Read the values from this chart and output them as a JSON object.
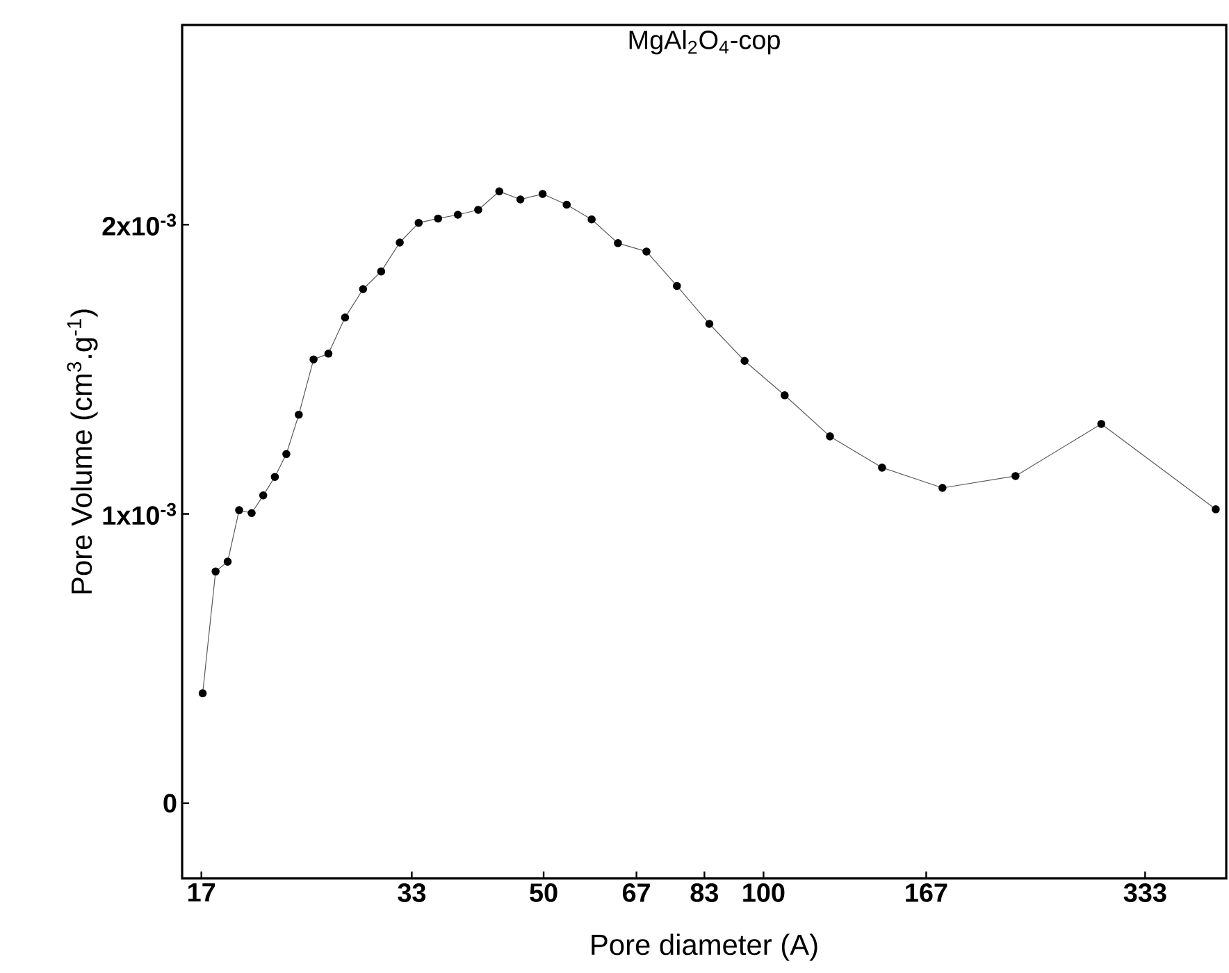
{
  "chart_data": {
    "type": "line",
    "title": "MgAl$_{2}$O$_{4}$-cop",
    "xlabel": "Pore diameter (A)",
    "ylabel": "Pore Volume (cm$^{3}$.g$^{-1}$)",
    "log": "x",
    "xlim": [
      16,
      430
    ],
    "ylim": [
      -0.00026,
      0.00269
    ],
    "xticks": [
      17,
      33,
      50,
      67,
      83,
      100,
      167,
      333
    ],
    "yticks": [
      {
        "value": 0,
        "label": "0"
      },
      {
        "value": 0.001,
        "label": "1x10$^{-3}$"
      },
      {
        "value": 0.002,
        "label": "2x10$^{-3}$"
      }
    ],
    "marker": "circle",
    "line_style": "solid",
    "series": [
      {
        "color": "#000000",
        "x": [
          17.07,
          17.78,
          18.47,
          19.15,
          19.92,
          20.66,
          21.43,
          22.22,
          23.11,
          24.21,
          25.37,
          26.74,
          28.3,
          29.96,
          31.77,
          33.72,
          35.85,
          38.16,
          40.68,
          43.48,
          46.47,
          49.84,
          53.77,
          58.17,
          63.2,
          69.15,
          76.12,
          84.3,
          94.2,
          106.9,
          123.3,
          145.3,
          175.8,
          221.3,
          290,
          416
        ],
        "values": [
          0.00038,
          0.000801,
          0.000835,
          0.001013,
          0.001003,
          0.001064,
          0.001128,
          0.001207,
          0.001343,
          0.001534,
          0.001554,
          0.001679,
          0.001777,
          0.001838,
          0.001938,
          0.002006,
          0.002021,
          0.002034,
          0.002051,
          0.002115,
          0.002087,
          0.002106,
          0.002069,
          0.002018,
          0.001936,
          0.001907,
          0.001788,
          0.001657,
          0.001529,
          0.00141,
          0.001268,
          0.00116,
          0.00109,
          0.001131,
          0.001311,
          0.001016
        ]
      }
    ]
  }
}
